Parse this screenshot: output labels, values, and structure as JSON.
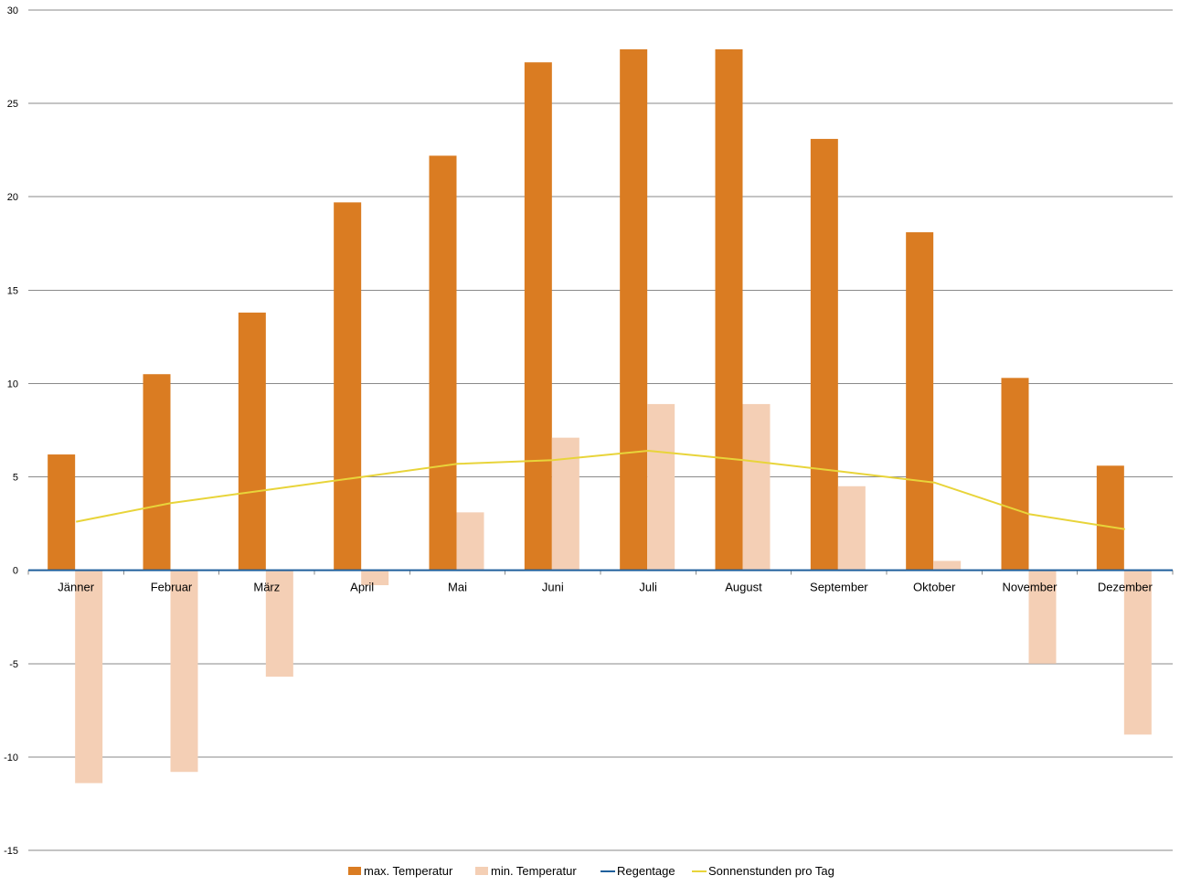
{
  "chart_data": {
    "type": "bar",
    "categories": [
      "Jänner",
      "Februar",
      "März",
      "April",
      "Mai",
      "Juni",
      "Juli",
      "August",
      "September",
      "Oktober",
      "November",
      "Dezember"
    ],
    "series": [
      {
        "name": "max. Temperatur",
        "type": "bar",
        "color": "#DA7C22",
        "values": [
          6.2,
          10.5,
          13.8,
          19.7,
          22.2,
          27.2,
          27.9,
          27.9,
          23.1,
          18.1,
          10.3,
          5.6
        ]
      },
      {
        "name": "min. Temperatur",
        "type": "bar",
        "color": "#F4CFB5",
        "values": [
          -11.4,
          -10.8,
          -5.7,
          -0.8,
          3.1,
          7.1,
          8.9,
          8.9,
          4.5,
          0.5,
          -5.0,
          -8.8
        ]
      },
      {
        "name": "Regentage",
        "type": "line",
        "color": "#1F5F9C",
        "values": [
          0,
          0,
          0,
          0,
          0,
          0,
          0,
          0,
          0,
          0,
          0,
          0
        ]
      },
      {
        "name": "Sonnenstunden pro Tag",
        "type": "line",
        "color": "#E8D43A",
        "values": [
          2.6,
          3.6,
          4.3,
          5.0,
          5.7,
          5.9,
          6.4,
          5.9,
          5.3,
          4.7,
          3.0,
          2.2
        ]
      }
    ],
    "yticks": [
      "30",
      "25",
      "20",
      "15",
      "10",
      "5",
      "0",
      "-5",
      "-10",
      "-15"
    ],
    "ylim": [
      -15,
      30
    ],
    "ytick_step": 5,
    "grid": true,
    "legend": "bottom",
    "title": "",
    "xlabel": "",
    "ylabel": ""
  }
}
